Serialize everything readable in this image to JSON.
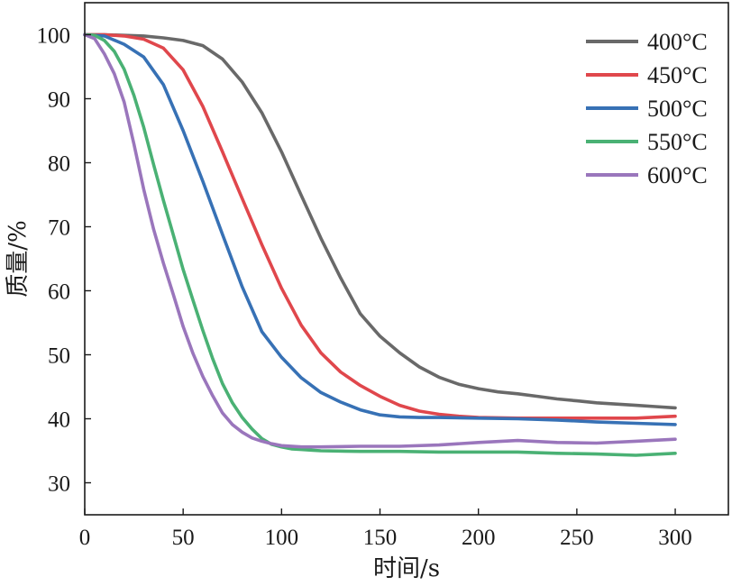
{
  "chart_data": {
    "type": "line",
    "title": "",
    "xlabel": "时间/s",
    "ylabel": "质量/%",
    "xlim": [
      0,
      327
    ],
    "ylim": [
      25,
      105
    ],
    "xticks": [
      0,
      50,
      100,
      150,
      200,
      250,
      300
    ],
    "yticks": [
      30,
      40,
      50,
      60,
      70,
      80,
      90,
      100
    ],
    "grid": false,
    "legend_position": "top-right",
    "series": [
      {
        "name": "400°C",
        "color": "#696969",
        "x": [
          0,
          10,
          20,
          30,
          40,
          50,
          60,
          70,
          80,
          90,
          100,
          110,
          120,
          130,
          140,
          150,
          160,
          170,
          180,
          190,
          200,
          210,
          220,
          230,
          240,
          250,
          260,
          270,
          280,
          290,
          300
        ],
        "y": [
          100,
          100,
          99.9,
          99.8,
          99.5,
          99.1,
          98.3,
          96.2,
          92.6,
          87.8,
          81.7,
          74.9,
          68.2,
          62,
          56.4,
          52.9,
          50.3,
          48.1,
          46.5,
          45.4,
          44.7,
          44.2,
          43.9,
          43.5,
          43.1,
          42.8,
          42.5,
          42.3,
          42.1,
          41.9,
          41.7
        ]
      },
      {
        "name": "450°C",
        "color": "#e0474c",
        "x": [
          0,
          10,
          20,
          30,
          40,
          50,
          60,
          70,
          80,
          90,
          100,
          110,
          120,
          130,
          140,
          150,
          160,
          170,
          180,
          190,
          200,
          220,
          240,
          260,
          280,
          300
        ],
        "y": [
          100,
          100,
          99.8,
          99.3,
          97.9,
          94.5,
          88.8,
          81.7,
          74.4,
          67.2,
          60.4,
          54.6,
          50.3,
          47.3,
          45.2,
          43.5,
          42.1,
          41.2,
          40.7,
          40.4,
          40.2,
          40.1,
          40.1,
          40.1,
          40.1,
          40.4
        ]
      },
      {
        "name": "500°C",
        "color": "#3771b5",
        "x": [
          0,
          10,
          20,
          30,
          40,
          50,
          60,
          70,
          80,
          90,
          100,
          110,
          120,
          130,
          140,
          150,
          160,
          170,
          180,
          200,
          220,
          240,
          260,
          280,
          300
        ],
        "y": [
          100,
          99.8,
          98.5,
          96.5,
          92.2,
          85,
          77.1,
          68.8,
          60.6,
          53.6,
          49.6,
          46.4,
          44.1,
          42.6,
          41.4,
          40.6,
          40.3,
          40.2,
          40.2,
          40.1,
          40,
          39.8,
          39.5,
          39.3,
          39.1
        ]
      },
      {
        "name": "550°C",
        "color": "#4ab174",
        "x": [
          0,
          5,
          10,
          15,
          20,
          25,
          30,
          35,
          40,
          45,
          50,
          55,
          60,
          65,
          70,
          75,
          80,
          85,
          90,
          95,
          100,
          105,
          110,
          115,
          120,
          140,
          160,
          180,
          200,
          220,
          240,
          260,
          280,
          300
        ],
        "y": [
          100,
          99.9,
          99.1,
          97.4,
          94.6,
          90.5,
          85.5,
          79.7,
          74.1,
          68.7,
          63.3,
          58.5,
          53.8,
          49.4,
          45.5,
          42.5,
          40.2,
          38.4,
          36.9,
          36,
          35.6,
          35.3,
          35.2,
          35.1,
          35,
          34.9,
          34.9,
          34.8,
          34.8,
          34.8,
          34.6,
          34.5,
          34.3,
          34.6
        ]
      },
      {
        "name": "600°C",
        "color": "#9a76bc",
        "x": [
          0,
          5,
          10,
          15,
          20,
          25,
          30,
          35,
          40,
          45,
          50,
          55,
          60,
          65,
          70,
          75,
          80,
          85,
          90,
          95,
          100,
          110,
          120,
          140,
          160,
          180,
          200,
          220,
          240,
          260,
          280,
          300
        ],
        "y": [
          100,
          99.4,
          97,
          93.9,
          89.5,
          82.9,
          75.8,
          69.6,
          64.3,
          59.4,
          54.4,
          50.2,
          46.6,
          43.6,
          40.9,
          39.1,
          37.9,
          37,
          36.5,
          36.1,
          35.8,
          35.6,
          35.6,
          35.7,
          35.7,
          35.9,
          36.3,
          36.6,
          36.3,
          36.2,
          36.5,
          36.8
        ]
      }
    ]
  }
}
